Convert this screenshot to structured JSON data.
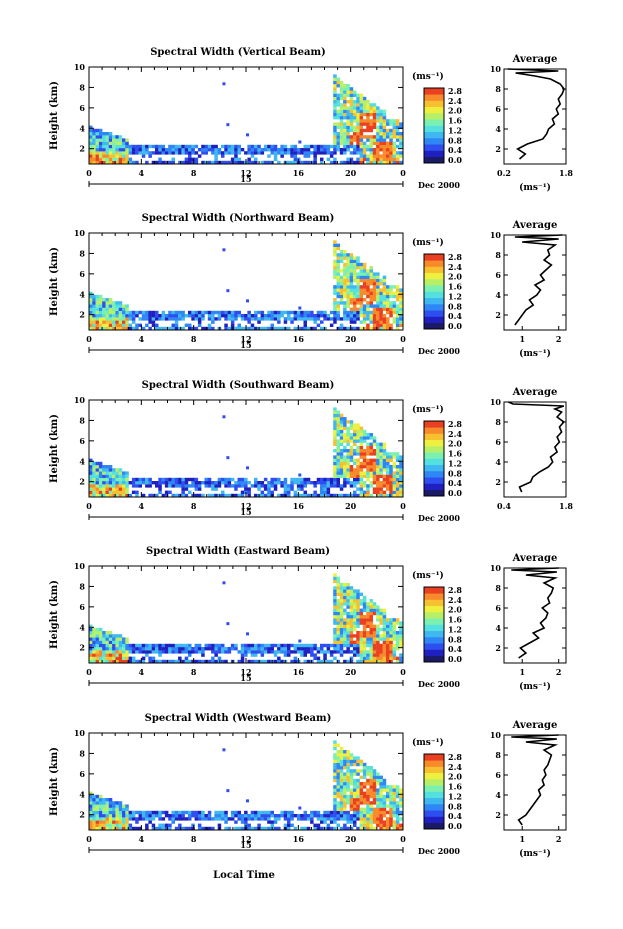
{
  "colors": {
    "colorbar": [
      "#1a1a66",
      "#2020c0",
      "#2e4ef0",
      "#2f86f5",
      "#3fb7f0",
      "#55e0e0",
      "#7bf0b0",
      "#b7f068",
      "#eef040",
      "#f7c030",
      "#f78a2a",
      "#e84020"
    ]
  },
  "chart_data": [
    {
      "type": "heatmap",
      "title": "Spectral Width (Vertical Beam)",
      "ylabel": "Height (km)",
      "ylim": [
        0.5,
        10
      ],
      "yticks": [
        "2",
        "4",
        "6",
        "8",
        "10"
      ],
      "xlim": [
        0,
        24
      ],
      "xticks": [
        "0",
        "4",
        "8",
        "12",
        "16",
        "20",
        "0"
      ],
      "date_center": "15",
      "date_label": "Dec 2000",
      "colorbar_unit": "(ms⁻¹)",
      "colorbar_ticks": [
        "0.0",
        "0.4",
        "0.8",
        "1.2",
        "1.6",
        "2.0",
        "2.4",
        "2.8"
      ],
      "average": {
        "title": "Average",
        "xlabel": "(ms⁻¹)",
        "xticks": [
          "0.2",
          "1.8"
        ],
        "xlim": [
          0.2,
          1.8
        ],
        "yticks": [
          "2",
          "4",
          "6",
          "8",
          "10"
        ],
        "heights": [
          1,
          1.5,
          2,
          2.5,
          3,
          3.5,
          4,
          4.5,
          5,
          5.5,
          6,
          6.5,
          7,
          7.5,
          8,
          8.5,
          9,
          9.3,
          9.6,
          9.8,
          10
        ],
        "values": [
          0.6,
          0.75,
          0.55,
          0.8,
          1.2,
          1.3,
          1.35,
          1.5,
          1.45,
          1.6,
          1.55,
          1.65,
          1.6,
          1.7,
          1.75,
          1.65,
          1.4,
          1.0,
          0.5,
          1.6,
          0.3
        ]
      }
    },
    {
      "type": "heatmap",
      "title": "Spectral Width (Northward Beam)",
      "ylabel": "Height (km)",
      "ylim": [
        0.5,
        10
      ],
      "yticks": [
        "2",
        "4",
        "6",
        "8",
        "10"
      ],
      "xlim": [
        0,
        24
      ],
      "xticks": [
        "0",
        "4",
        "8",
        "12",
        "16",
        "20",
        "0"
      ],
      "date_center": "15",
      "date_label": "Dec 2000",
      "colorbar_unit": "(ms⁻¹)",
      "colorbar_ticks": [
        "0.0",
        "0.4",
        "0.8",
        "1.2",
        "1.6",
        "2.0",
        "2.4",
        "2.8"
      ],
      "average": {
        "title": "Average",
        "xlabel": "(ms⁻¹)",
        "xticks": [
          "1",
          "2"
        ],
        "xlim": [
          0.5,
          2.2
        ],
        "yticks": [
          "2",
          "4",
          "6",
          "8",
          "10"
        ],
        "heights": [
          1,
          1.5,
          2,
          2.5,
          3,
          3.5,
          4,
          4.5,
          5,
          5.5,
          6,
          6.5,
          7,
          7.5,
          8,
          8.5,
          9,
          9.3,
          9.6,
          9.8,
          10
        ],
        "values": [
          0.8,
          0.9,
          1.0,
          1.1,
          1.3,
          1.2,
          1.4,
          1.5,
          1.35,
          1.6,
          1.5,
          1.65,
          1.8,
          1.6,
          1.75,
          1.7,
          1.9,
          1.0,
          2.0,
          0.8,
          2.1
        ]
      }
    },
    {
      "type": "heatmap",
      "title": "Spectral Width (Southward Beam)",
      "ylabel": "Height (km)",
      "ylim": [
        0.5,
        10
      ],
      "yticks": [
        "2",
        "4",
        "6",
        "8",
        "10"
      ],
      "xlim": [
        0,
        24
      ],
      "xticks": [
        "0",
        "4",
        "8",
        "12",
        "16",
        "20",
        "0"
      ],
      "date_center": "15",
      "date_label": "Dec 2000",
      "colorbar_unit": "(ms⁻¹)",
      "colorbar_ticks": [
        "0.0",
        "0.4",
        "0.8",
        "1.2",
        "1.6",
        "2.0",
        "2.4",
        "2.8"
      ],
      "average": {
        "title": "Average",
        "xlabel": "",
        "xticks": [
          "0.4",
          "1.8"
        ],
        "xlim": [
          0.4,
          1.8
        ],
        "yticks": [
          "2",
          "4",
          "6",
          "8",
          "10"
        ],
        "heights": [
          1,
          1.5,
          2,
          2.5,
          3,
          3.5,
          4,
          4.5,
          5,
          5.5,
          6,
          6.5,
          7,
          7.5,
          8,
          8.5,
          9,
          9.3,
          9.6,
          9.8,
          10
        ],
        "values": [
          0.8,
          0.75,
          1.0,
          1.05,
          1.2,
          1.4,
          1.5,
          1.45,
          1.6,
          1.55,
          1.65,
          1.6,
          1.7,
          1.65,
          1.75,
          1.6,
          1.7,
          1.55,
          1.75,
          0.6,
          0.5
        ]
      }
    },
    {
      "type": "heatmap",
      "title": "Spectral Width (Eastward Beam)",
      "ylabel": "Height (km)",
      "ylim": [
        0.5,
        10
      ],
      "yticks": [
        "2",
        "4",
        "6",
        "8",
        "10"
      ],
      "xlim": [
        0,
        24
      ],
      "xticks": [
        "0",
        "4",
        "8",
        "12",
        "16",
        "20",
        "0"
      ],
      "date_center": "15",
      "date_label": "Dec 2000",
      "colorbar_unit": "(ms⁻¹)",
      "colorbar_ticks": [
        "0.0",
        "0.4",
        "0.8",
        "1.2",
        "1.6",
        "2.0",
        "2.4",
        "2.8"
      ],
      "average": {
        "title": "Average",
        "xlabel": "(ms⁻¹)",
        "xticks": [
          "1",
          "2"
        ],
        "xlim": [
          0.5,
          2.2
        ],
        "yticks": [
          "2",
          "4",
          "6",
          "8",
          "10"
        ],
        "heights": [
          1,
          1.5,
          2,
          2.5,
          3,
          3.5,
          4,
          4.5,
          5,
          5.5,
          6,
          6.5,
          7,
          7.5,
          8,
          8.5,
          9,
          9.3,
          9.6,
          9.8,
          10
        ],
        "values": [
          0.9,
          1.1,
          0.95,
          1.2,
          1.45,
          1.3,
          1.6,
          1.5,
          1.65,
          1.7,
          1.55,
          1.75,
          1.7,
          1.8,
          1.85,
          1.6,
          1.9,
          1.1,
          1.95,
          0.7,
          2.0
        ]
      }
    },
    {
      "type": "heatmap",
      "title": "Spectral Width (Westward Beam)",
      "ylabel": "Height (km)",
      "ylim": [
        0.5,
        10
      ],
      "yticks": [
        "2",
        "4",
        "6",
        "8",
        "10"
      ],
      "xlim": [
        0,
        24
      ],
      "xticks": [
        "0",
        "4",
        "8",
        "12",
        "16",
        "20",
        "0"
      ],
      "date_center": "15",
      "date_label": "Dec 2000",
      "colorbar_unit": "(ms⁻¹)",
      "colorbar_ticks": [
        "0.0",
        "0.4",
        "0.8",
        "1.2",
        "1.6",
        "2.0",
        "2.4",
        "2.8"
      ],
      "average": {
        "title": "Average",
        "xlabel": "(ms⁻¹)",
        "xticks": [
          "1",
          "2"
        ],
        "xlim": [
          0.5,
          2.2
        ],
        "yticks": [
          "2",
          "4",
          "6",
          "8",
          "10"
        ],
        "heights": [
          1,
          1.5,
          2,
          2.5,
          3,
          3.5,
          4,
          4.5,
          5,
          5.5,
          6,
          6.5,
          7,
          7.5,
          8,
          8.5,
          9,
          9.3,
          9.6,
          9.8,
          10
        ],
        "values": [
          1.0,
          0.9,
          1.1,
          1.2,
          1.3,
          1.4,
          1.5,
          1.45,
          1.6,
          1.55,
          1.65,
          1.6,
          1.7,
          1.75,
          1.8,
          1.6,
          1.9,
          1.1,
          1.95,
          0.7,
          2.0
        ]
      }
    }
  ],
  "footer": {
    "xlabel": "Local Time"
  }
}
